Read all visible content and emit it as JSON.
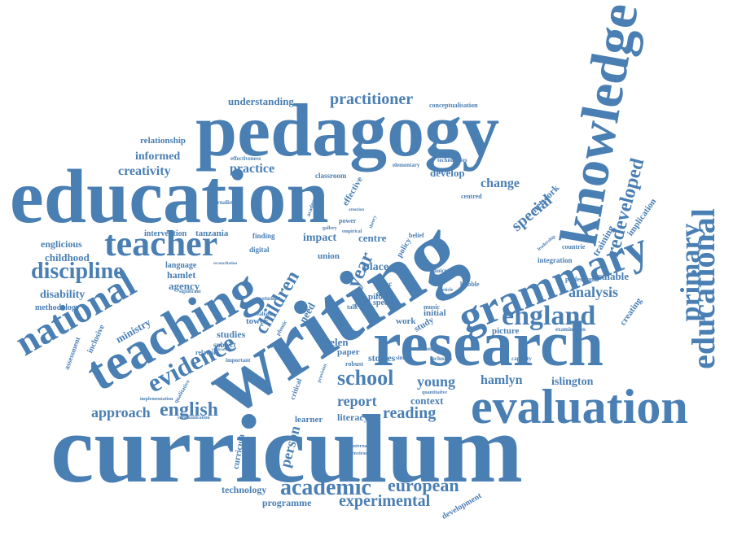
{
  "cloud": {
    "color": "#4a7fb3",
    "words": [
      {
        "text": "curriculum"
      },
      {
        "text": "writing"
      },
      {
        "text": "education"
      },
      {
        "text": "pedagogy"
      },
      {
        "text": "research"
      },
      {
        "text": "teaching"
      },
      {
        "text": "knowledge"
      },
      {
        "text": "evaluation"
      },
      {
        "text": "grammary"
      },
      {
        "text": "national"
      },
      {
        "text": "teacher"
      },
      {
        "text": "educational"
      },
      {
        "text": "academic"
      },
      {
        "text": "evidence"
      },
      {
        "text": "england"
      },
      {
        "text": "primary"
      },
      {
        "text": "redeveloped"
      },
      {
        "text": "discipline"
      },
      {
        "text": "school"
      },
      {
        "text": "english"
      },
      {
        "text": "european"
      },
      {
        "text": "experimental"
      },
      {
        "text": "children"
      },
      {
        "text": "special"
      },
      {
        "text": "practitioner"
      },
      {
        "text": "analysis"
      },
      {
        "text": "reading"
      },
      {
        "text": "report"
      },
      {
        "text": "approach"
      },
      {
        "text": "young"
      },
      {
        "text": "hamlyn"
      },
      {
        "text": "change"
      },
      {
        "text": "practice"
      },
      {
        "text": "creativity"
      },
      {
        "text": "person"
      },
      {
        "text": "islington"
      },
      {
        "text": "understanding"
      },
      {
        "text": "informed"
      },
      {
        "text": "disability"
      },
      {
        "text": "childhood"
      },
      {
        "text": "englicious"
      },
      {
        "text": "impact"
      },
      {
        "text": "centre"
      },
      {
        "text": "year"
      },
      {
        "text": "scalable"
      },
      {
        "text": "technology"
      },
      {
        "text": "programme"
      },
      {
        "text": "relationship"
      },
      {
        "text": "develop"
      },
      {
        "text": "studies"
      },
      {
        "text": "literacy"
      },
      {
        "text": "place"
      },
      {
        "text": "context"
      },
      {
        "text": "stories"
      },
      {
        "text": "ministry"
      },
      {
        "text": "helen"
      },
      {
        "text": "agency"
      },
      {
        "text": "hamlet"
      },
      {
        "text": "tanzania"
      },
      {
        "text": "network"
      },
      {
        "text": "creating"
      },
      {
        "text": "implication"
      },
      {
        "text": "training"
      },
      {
        "text": "picture"
      },
      {
        "text": "learner"
      },
      {
        "text": "union"
      },
      {
        "text": "pilot"
      },
      {
        "text": "paper"
      },
      {
        "text": "intervention"
      },
      {
        "text": "methodology"
      },
      {
        "text": "curricula"
      },
      {
        "text": "inclusive"
      },
      {
        "text": "assessment"
      },
      {
        "text": "need"
      },
      {
        "text": "tower"
      },
      {
        "text": "effective"
      },
      {
        "text": "development"
      },
      {
        "text": "classroom"
      },
      {
        "text": "conceptualisation"
      },
      {
        "text": "professional"
      },
      {
        "text": "countrie"
      },
      {
        "text": "examination"
      },
      {
        "text": "integration"
      },
      {
        "text": "language"
      },
      {
        "text": "digital"
      },
      {
        "text": "finding"
      },
      {
        "text": "effectiveness"
      },
      {
        "text": "elementary"
      },
      {
        "text": "technologies"
      },
      {
        "text": "centred"
      },
      {
        "text": "journalist"
      },
      {
        "text": "academy"
      },
      {
        "text": "subject"
      },
      {
        "text": "relation"
      },
      {
        "text": "qualitative"
      },
      {
        "text": "study"
      },
      {
        "text": "work"
      },
      {
        "text": "music"
      },
      {
        "text": "initial"
      },
      {
        "text": "aim"
      },
      {
        "text": "speech"
      },
      {
        "text": "robust"
      },
      {
        "text": "simple"
      },
      {
        "text": "capacity"
      },
      {
        "text": "bubble"
      },
      {
        "text": "quantitative"
      },
      {
        "text": "media"
      },
      {
        "text": "inclusion"
      },
      {
        "text": "critical"
      },
      {
        "text": "international"
      },
      {
        "text": "environment"
      },
      {
        "text": "phonic"
      },
      {
        "text": "realism"
      },
      {
        "text": "significant"
      },
      {
        "text": "student"
      },
      {
        "text": "important"
      },
      {
        "text": "policy"
      },
      {
        "text": "belief"
      },
      {
        "text": "proc"
      },
      {
        "text": "focus"
      },
      {
        "text": "talk"
      },
      {
        "text": "implementation"
      },
      {
        "text": "communication"
      },
      {
        "text": "contradiction"
      },
      {
        "text": "power"
      },
      {
        "text": "gallery"
      },
      {
        "text": "empirical"
      },
      {
        "text": "leadership"
      },
      {
        "text": "choice"
      },
      {
        "text": "reconciliation"
      },
      {
        "text": "provision"
      },
      {
        "text": "attention"
      },
      {
        "text": "article"
      },
      {
        "text": "theory"
      }
    ]
  }
}
